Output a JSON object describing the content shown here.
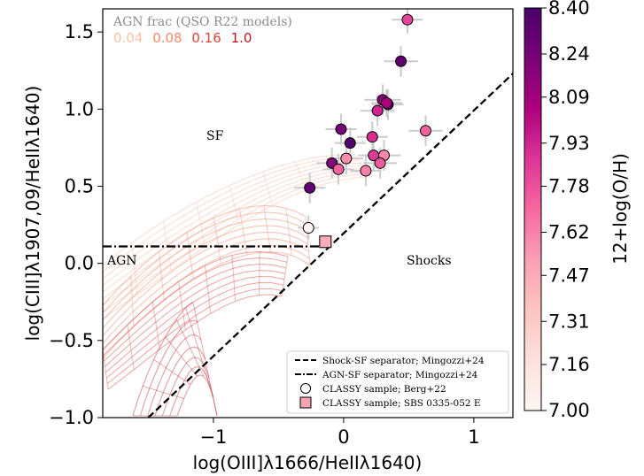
{
  "chart_data": {
    "type": "scatter",
    "xlabel": "log(OIII]λ1666/HeIIλ1640)",
    "ylabel": "log(CIII]λ1907,09/HeIIλ1640)",
    "xlim": [
      -1.85,
      1.3
    ],
    "ylim": [
      -1.0,
      1.65
    ],
    "x_ticks": [
      -1,
      0,
      1
    ],
    "x_tick_labels": [
      "−1",
      "0",
      "1"
    ],
    "y_ticks": [
      -1.0,
      -0.5,
      0.0,
      0.5,
      1.0,
      1.5
    ],
    "y_tick_labels": [
      "−1.0",
      "−0.5",
      "0.0",
      "0.5",
      "1.0",
      "1.5"
    ],
    "grid": false,
    "colorbar": {
      "label": "12+log(O/H)",
      "min": 7.0,
      "max": 8.4,
      "ticks": [
        7.0,
        7.16,
        7.31,
        7.47,
        7.62,
        7.78,
        7.93,
        8.09,
        8.24,
        8.4
      ],
      "tick_labels": [
        "7.00",
        "7.16",
        "7.31",
        "7.47",
        "7.62",
        "7.78",
        "7.93",
        "8.09",
        "8.24",
        "8.40"
      ],
      "colormap": "RdPu"
    },
    "agn_legend": {
      "title": "AGN frac (QSO R22 models)",
      "entries": [
        {
          "label": "0.04",
          "color": "#f9c2a8"
        },
        {
          "label": "0.08",
          "color": "#f28b6e"
        },
        {
          "label": "0.16",
          "color": "#e0453a"
        },
        {
          "label": "1.0",
          "color": "#c0141e"
        }
      ]
    },
    "region_labels": [
      {
        "text": "SF",
        "x": -0.97,
        "y": 0.78
      },
      {
        "text": "AGN",
        "x": -1.73,
        "y": 0.02
      },
      {
        "text": "Shocks",
        "x": 0.67,
        "y": 0.02
      }
    ],
    "lines": [
      {
        "name": "Shock-SF separator; Mingozzi+24",
        "style": "dashed",
        "points": [
          [
            -1.5,
            -1.0
          ],
          [
            1.3,
            1.23
          ]
        ]
      },
      {
        "name": "AGN-SF separator; Mingozzi+24",
        "style": "dashdot",
        "points": [
          [
            -1.85,
            0.11
          ],
          [
            -0.15,
            0.11
          ]
        ]
      }
    ],
    "legend": {
      "position": "lower right",
      "entries": [
        {
          "label": "Shock-SF separator; Mingozzi+24",
          "marker": "dashed-line"
        },
        {
          "label": "AGN-SF separator; Mingozzi+24",
          "marker": "dashdot-line"
        },
        {
          "label": "CLASSY sample; Berg+22",
          "marker": "circle"
        },
        {
          "label": "CLASSY sample; SBS 0335-052 E",
          "marker": "square"
        }
      ]
    },
    "series": [
      {
        "name": "CLASSY sample; Berg+22",
        "marker": "circle",
        "points": [
          {
            "x": 0.49,
            "y": 1.58,
            "xerr": 0.12,
            "yerr": 0.09,
            "oh": 7.82
          },
          {
            "x": 0.44,
            "y": 1.31,
            "xerr": 0.13,
            "yerr": 0.1,
            "oh": 8.32
          },
          {
            "x": 0.3,
            "y": 1.06,
            "xerr": 0.14,
            "yerr": 0.1,
            "oh": 8.18
          },
          {
            "x": 0.34,
            "y": 1.03,
            "xerr": 0.12,
            "yerr": 0.1,
            "oh": 8.28
          },
          {
            "x": 0.33,
            "y": 1.04,
            "xerr": 0.12,
            "yerr": 0.09,
            "oh": 8.05
          },
          {
            "x": 0.26,
            "y": 0.99,
            "xerr": 0.13,
            "yerr": 0.1,
            "oh": 7.93
          },
          {
            "x": 0.63,
            "y": 0.86,
            "xerr": 0.13,
            "yerr": 0.1,
            "oh": 7.72
          },
          {
            "x": -0.02,
            "y": 0.87,
            "xerr": 0.12,
            "yerr": 0.1,
            "oh": 8.24
          },
          {
            "x": 0.22,
            "y": 0.82,
            "xerr": 0.12,
            "yerr": 0.1,
            "oh": 7.9
          },
          {
            "x": 0.05,
            "y": 0.78,
            "xerr": 0.12,
            "yerr": 0.1,
            "oh": 8.37
          },
          {
            "x": 0.23,
            "y": 0.7,
            "xerr": 0.12,
            "yerr": 0.1,
            "oh": 7.85
          },
          {
            "x": 0.31,
            "y": 0.7,
            "xerr": 0.13,
            "yerr": 0.1,
            "oh": 7.6
          },
          {
            "x": 0.02,
            "y": 0.68,
            "xerr": 0.13,
            "yerr": 0.1,
            "oh": 7.58
          },
          {
            "x": -0.09,
            "y": 0.65,
            "xerr": 0.12,
            "yerr": 0.1,
            "oh": 8.2
          },
          {
            "x": 0.28,
            "y": 0.65,
            "xerr": 0.13,
            "yerr": 0.1,
            "oh": 7.74
          },
          {
            "x": -0.04,
            "y": 0.61,
            "xerr": 0.12,
            "yerr": 0.1,
            "oh": 7.72
          },
          {
            "x": 0.17,
            "y": 0.6,
            "xerr": 0.12,
            "yerr": 0.1,
            "oh": 7.62
          },
          {
            "x": -0.26,
            "y": 0.49,
            "xerr": 0.12,
            "yerr": 0.1,
            "oh": 8.31
          },
          {
            "x": -0.27,
            "y": 0.23,
            "xerr": 0.08,
            "yerr": 0.08,
            "oh": 7.02
          }
        ]
      },
      {
        "name": "CLASSY sample; SBS 0335-052 E",
        "marker": "square",
        "points": [
          {
            "x": -0.14,
            "y": 0.14,
            "oh": 7.46
          }
        ]
      }
    ]
  }
}
